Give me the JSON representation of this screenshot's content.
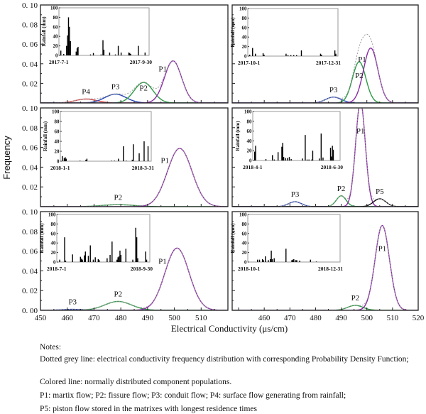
{
  "chart_data": {
    "type": "line",
    "xlabel": "Electrical Conductivity (μs/cm)",
    "ylabel": "Frequency",
    "xlim": [
      450,
      520
    ],
    "ylim": [
      0,
      0.1
    ],
    "yticks": [
      "0. 00",
      "0. 02",
      "0. 04",
      "0. 06",
      "0. 08",
      "0. 10"
    ],
    "xticks": [
      450,
      460,
      470,
      480,
      490,
      500,
      510,
      520
    ],
    "sum_curve_style": "dotted grey",
    "colors": {
      "P1": "#8a2ca6",
      "P2": "#2f9a47",
      "P3": "#2745b3",
      "P4": "#d64545",
      "P5": "#111111",
      "sum": "#9a9a9a"
    },
    "inset": {
      "ylabel": "Rainfall (mm)",
      "ylim": [
        0,
        100
      ],
      "yticks": [
        "0",
        "20",
        "40",
        "60",
        "80",
        "100"
      ]
    },
    "panels": [
      {
        "components": [
          {
            "name": "P4",
            "mean": 467,
            "sd": 4,
            "peak": 0.004
          },
          {
            "name": "P3",
            "mean": 478,
            "sd": 4,
            "peak": 0.009
          },
          {
            "name": "P2",
            "mean": 488.5,
            "sd": 3.5,
            "peak": 0.021
          },
          {
            "name": "P1",
            "mean": 499.5,
            "sd": 3.2,
            "peak": 0.043
          }
        ],
        "rainfall": {
          "start": "2017-7-1",
          "end": "2017-9-30",
          "bars": [
            [
              "07-01",
              10
            ],
            [
              "07-04",
              3
            ],
            [
              "07-07",
              20
            ],
            [
              "07-08",
              42
            ],
            [
              "07-09",
              80
            ],
            [
              "07-10",
              60
            ],
            [
              "07-11",
              30
            ],
            [
              "07-17",
              8
            ],
            [
              "07-18",
              15
            ],
            [
              "07-19",
              18
            ],
            [
              "08-01",
              2
            ],
            [
              "08-04",
              5
            ],
            [
              "08-12",
              2
            ],
            [
              "08-14",
              32
            ],
            [
              "08-15",
              12
            ],
            [
              "08-21",
              6
            ],
            [
              "08-27",
              2
            ],
            [
              "08-30",
              20
            ],
            [
              "09-02",
              6
            ],
            [
              "09-10",
              6
            ],
            [
              "09-11",
              5
            ],
            [
              "09-12",
              3
            ],
            [
              "09-20",
              20
            ],
            [
              "09-27",
              6
            ]
          ]
        }
      },
      {
        "components": [
          {
            "name": "P3",
            "mean": 487,
            "sd": 3,
            "peak": 0.006
          },
          {
            "name": "P2",
            "mean": 497,
            "sd": 2.6,
            "peak": 0.042
          },
          {
            "name": "P1",
            "mean": 501.5,
            "sd": 2.8,
            "peak": 0.056
          }
        ],
        "rainfall": {
          "start": "2017-10-1",
          "end": "2017-12-31",
          "bars": [
            [
              "10-01",
              3
            ],
            [
              "10-04",
              17
            ],
            [
              "10-07",
              5
            ],
            [
              "10-15",
              6
            ],
            [
              "10-16",
              3
            ],
            [
              "11-08",
              5
            ],
            [
              "11-10",
              2
            ],
            [
              "11-13",
              2
            ],
            [
              "11-16",
              2
            ],
            [
              "11-19",
              2
            ],
            [
              "11-24",
              12
            ],
            [
              "12-14",
              5
            ],
            [
              "12-15",
              3
            ],
            [
              "12-29",
              12
            ],
            [
              "12-30",
              5
            ]
          ]
        }
      },
      {
        "components": [
          {
            "name": "P2",
            "mean": 479,
            "sd": 6,
            "peak": 0.002
          },
          {
            "name": "P1",
            "mean": 502,
            "sd": 4.6,
            "peak": 0.059
          }
        ],
        "rainfall": {
          "start": "2018-1-1",
          "end": "2018-3-31",
          "bars": [
            [
              "01-01",
              10
            ],
            [
              "01-03",
              6
            ],
            [
              "01-04",
              8
            ],
            [
              "01-05",
              5
            ],
            [
              "01-19",
              1
            ],
            [
              "01-25",
              3
            ],
            [
              "01-26",
              5
            ],
            [
              "02-20",
              1
            ],
            [
              "02-23",
              1
            ],
            [
              "02-27",
              5
            ],
            [
              "03-04",
              30
            ],
            [
              "03-07",
              1
            ],
            [
              "03-13",
              3
            ],
            [
              "03-14",
              34
            ],
            [
              "03-20",
              16
            ],
            [
              "03-25",
              40
            ],
            [
              "03-29",
              30
            ]
          ]
        }
      },
      {
        "components": [
          {
            "name": "P3",
            "mean": 472,
            "sd": 2.5,
            "peak": 0.005
          },
          {
            "name": "P2",
            "mean": 490,
            "sd": 1.9,
            "peak": 0.011
          },
          {
            "name": "P1",
            "mean": 497.5,
            "sd": 1.9,
            "peak": 0.106
          },
          {
            "name": "P5",
            "mean": 505,
            "sd": 2.4,
            "peak": 0.008
          }
        ],
        "rainfall": {
          "start": "2018-4-1",
          "end": "2018-6-30",
          "bars": [
            [
              "04-01",
              18
            ],
            [
              "04-02",
              30
            ],
            [
              "04-13",
              3
            ],
            [
              "04-20",
              11
            ],
            [
              "04-22",
              2
            ],
            [
              "04-26",
              17
            ],
            [
              "04-30",
              28
            ],
            [
              "05-01",
              36
            ],
            [
              "05-02",
              7
            ],
            [
              "05-04",
              5
            ],
            [
              "05-06",
              5
            ],
            [
              "05-08",
              7
            ],
            [
              "05-10",
              3
            ],
            [
              "05-22",
              4
            ],
            [
              "05-25",
              52
            ],
            [
              "05-27",
              2
            ],
            [
              "05-29",
              2
            ],
            [
              "06-01",
              2
            ],
            [
              "06-02",
              20
            ],
            [
              "06-09",
              4
            ],
            [
              "06-11",
              55
            ],
            [
              "06-13",
              6
            ],
            [
              "06-21",
              26
            ],
            [
              "06-22",
              8
            ],
            [
              "06-23",
              30
            ],
            [
              "06-24",
              22
            ]
          ]
        }
      },
      {
        "components": [
          {
            "name": "P3",
            "mean": 462,
            "sd": 4,
            "peak": 0.001
          },
          {
            "name": "P2",
            "mean": 479,
            "sd": 5,
            "peak": 0.009
          },
          {
            "name": "P1",
            "mean": 501,
            "sd": 4.5,
            "peak": 0.063
          }
        ],
        "rainfall": {
          "start": "2018-7-1",
          "end": "2018-9-30",
          "bars": [
            [
              "07-02",
              5
            ],
            [
              "07-07",
              52
            ],
            [
              "07-08",
              3
            ],
            [
              "07-15",
              16
            ],
            [
              "07-23",
              11
            ],
            [
              "07-24",
              7
            ],
            [
              "07-25",
              5
            ],
            [
              "07-27",
              14
            ],
            [
              "07-28",
              22
            ],
            [
              "07-31",
              13
            ],
            [
              "08-02",
              35
            ],
            [
              "08-05",
              5
            ],
            [
              "08-07",
              10
            ],
            [
              "08-10",
              6
            ],
            [
              "08-11",
              4
            ],
            [
              "08-19",
              8
            ],
            [
              "08-22",
              15
            ],
            [
              "08-24",
              43
            ],
            [
              "08-29",
              5
            ],
            [
              "08-30",
              10
            ],
            [
              "08-31",
              12
            ],
            [
              "09-01",
              24
            ],
            [
              "09-02",
              15
            ],
            [
              "09-07",
              28
            ],
            [
              "09-14",
              5
            ],
            [
              "09-17",
              72
            ],
            [
              "09-18",
              52
            ],
            [
              "09-19",
              8
            ],
            [
              "09-27",
              22
            ],
            [
              "09-28",
              5
            ]
          ]
        }
      },
      {
        "components": [
          {
            "name": "P2",
            "mean": 495.5,
            "sd": 3,
            "peak": 0.005
          },
          {
            "name": "P1",
            "mean": 506,
            "sd": 2.8,
            "peak": 0.086
          }
        ],
        "rainfall": {
          "start": "2018-10-1",
          "end": "2018-12-31",
          "bars": [
            [
              "10-09",
              5
            ],
            [
              "10-11",
              5
            ],
            [
              "10-14",
              6
            ],
            [
              "10-15",
              4
            ],
            [
              "10-17",
              12
            ],
            [
              "10-20",
              4
            ],
            [
              "10-22",
              6
            ],
            [
              "10-23",
              24
            ],
            [
              "10-24",
              6
            ],
            [
              "10-26",
              8
            ],
            [
              "11-07",
              28
            ],
            [
              "11-13",
              4
            ],
            [
              "11-14",
              5
            ],
            [
              "11-15",
              6
            ],
            [
              "11-17",
              4
            ],
            [
              "11-18",
              4
            ],
            [
              "11-21",
              3
            ],
            [
              "12-02",
              5
            ],
            [
              "12-08",
              1
            ]
          ]
        }
      }
    ]
  },
  "notes": {
    "heading": "Notes:",
    "line1": "Dotted grey line: electrical conductivity frequency distribution with corresponding Probability Density Function;",
    "line2": "Colored line: normally distributed component populations.",
    "line3": "P1: martix flow; P2: fissure flow; P3: conduit flow; P4: surface flow generating from rainfall;",
    "line4": "P5: piston flow stored in the matrixes with longest residence times"
  }
}
